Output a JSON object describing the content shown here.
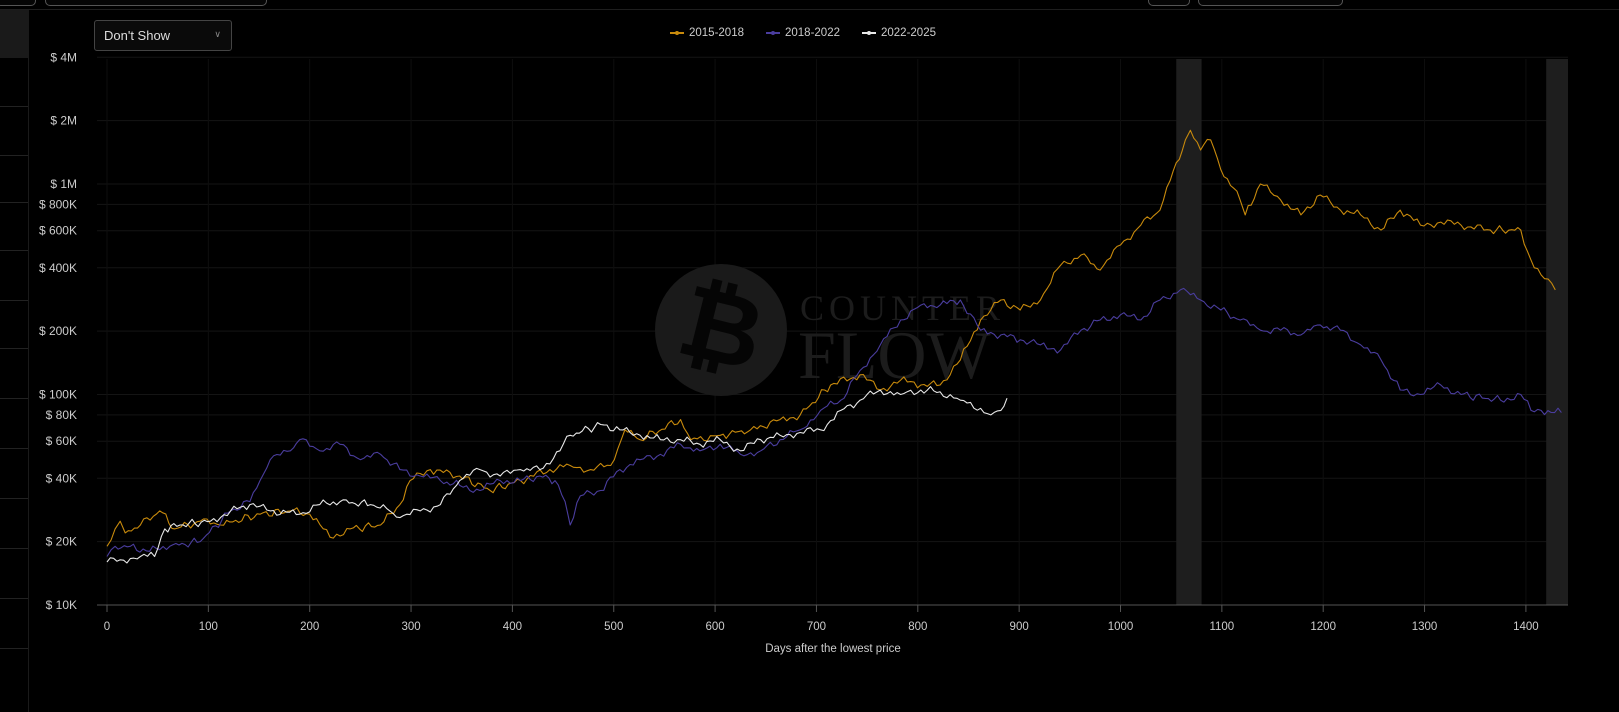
{
  "dropdown": {
    "selected": "Don't Show"
  },
  "colors": {
    "background": "#000000",
    "series_2015_2018": "#c88a0c",
    "series_2018_2022": "#4a3d9e",
    "series_2022_2025": "#e8e8e8",
    "shaded_band": "#1e1e1e"
  },
  "watermark": {
    "text_top": "COUNTER",
    "text_bottom": "FLOW",
    "icon": "bitcoin-icon"
  },
  "chart_data": {
    "type": "line",
    "title": "",
    "xlabel": "Days after the lowest price",
    "ylabel": "",
    "yscale": "log",
    "xlim": [
      -10,
      1442
    ],
    "ylim": [
      10000,
      4000000
    ],
    "grid": true,
    "legend_position": "top-center",
    "x_ticks": [
      "0",
      "100",
      "200",
      "300",
      "400",
      "500",
      "600",
      "700",
      "800",
      "900",
      "1000",
      "1100",
      "1200",
      "1300",
      "1400"
    ],
    "y_ticks": [
      {
        "value": 10000,
        "label": "$ 10K"
      },
      {
        "value": 20000,
        "label": "$ 20K"
      },
      {
        "value": 40000,
        "label": "$ 40K"
      },
      {
        "value": 60000,
        "label": "$ 60K"
      },
      {
        "value": 80000,
        "label": "$ 80K"
      },
      {
        "value": 100000,
        "label": "$ 100K"
      },
      {
        "value": 200000,
        "label": "$ 200K"
      },
      {
        "value": 400000,
        "label": "$ 400K"
      },
      {
        "value": 600000,
        "label": "$ 600K"
      },
      {
        "value": 800000,
        "label": "$ 800K"
      },
      {
        "value": 1000000,
        "label": "$ 1M"
      },
      {
        "value": 2000000,
        "label": "$ 2M"
      },
      {
        "value": 4000000,
        "label": "$ 4M"
      }
    ],
    "shaded_ranges": [
      [
        1055,
        1080
      ],
      [
        1420,
        1442
      ]
    ],
    "series": [
      {
        "name": "2015-2018",
        "color": "#c88a0c",
        "points": [
          [
            0,
            19000
          ],
          [
            8,
            23000
          ],
          [
            13,
            25000
          ],
          [
            18,
            22000
          ],
          [
            33,
            24000
          ],
          [
            52,
            28000
          ],
          [
            67,
            23000
          ],
          [
            92,
            25000
          ],
          [
            112,
            24000
          ],
          [
            151,
            27000
          ],
          [
            181,
            28000
          ],
          [
            200,
            27000
          ],
          [
            220,
            21000
          ],
          [
            240,
            23000
          ],
          [
            270,
            24000
          ],
          [
            289,
            30000
          ],
          [
            299,
            39000
          ],
          [
            319,
            44000
          ],
          [
            348,
            41000
          ],
          [
            378,
            35000
          ],
          [
            408,
            39000
          ],
          [
            437,
            44000
          ],
          [
            457,
            46000
          ],
          [
            477,
            44000
          ],
          [
            497,
            46000
          ],
          [
            511,
            68000
          ],
          [
            526,
            61000
          ],
          [
            566,
            76000
          ],
          [
            576,
            61000
          ],
          [
            605,
            64000
          ],
          [
            635,
            68000
          ],
          [
            664,
            76000
          ],
          [
            684,
            80000
          ],
          [
            714,
            111000
          ],
          [
            743,
            124000
          ],
          [
            763,
            105000
          ],
          [
            783,
            117000
          ],
          [
            803,
            111000
          ],
          [
            822,
            111000
          ],
          [
            842,
            146000
          ],
          [
            862,
            226000
          ],
          [
            882,
            281000
          ],
          [
            901,
            252000
          ],
          [
            921,
            281000
          ],
          [
            941,
            412000
          ],
          [
            961,
            460000
          ],
          [
            980,
            390000
          ],
          [
            1000,
            513000
          ],
          [
            1020,
            638000
          ],
          [
            1039,
            752000
          ],
          [
            1049,
            1040000
          ],
          [
            1064,
            1620000
          ],
          [
            1069,
            1800000
          ],
          [
            1079,
            1450000
          ],
          [
            1089,
            1620000
          ],
          [
            1099,
            1170000
          ],
          [
            1118,
            840000
          ],
          [
            1123,
            713000
          ],
          [
            1138,
            1000000
          ],
          [
            1158,
            840000
          ],
          [
            1178,
            713000
          ],
          [
            1197,
            887000
          ],
          [
            1217,
            752000
          ],
          [
            1237,
            713000
          ],
          [
            1257,
            604000
          ],
          [
            1276,
            752000
          ],
          [
            1296,
            638000
          ],
          [
            1316,
            659000
          ],
          [
            1336,
            638000
          ],
          [
            1365,
            604000
          ],
          [
            1395,
            604000
          ],
          [
            1405,
            435000
          ],
          [
            1415,
            370000
          ],
          [
            1429,
            314000
          ]
        ]
      },
      {
        "name": "2018-2022",
        "color": "#4a3d9e",
        "points": [
          [
            0,
            17000
          ],
          [
            8,
            19000
          ],
          [
            23,
            19000
          ],
          [
            42,
            18000
          ],
          [
            62,
            19000
          ],
          [
            92,
            20000
          ],
          [
            122,
            28000
          ],
          [
            141,
            31000
          ],
          [
            151,
            39000
          ],
          [
            161,
            49000
          ],
          [
            181,
            54000
          ],
          [
            190,
            61000
          ],
          [
            210,
            54000
          ],
          [
            230,
            58000
          ],
          [
            250,
            49000
          ],
          [
            270,
            52000
          ],
          [
            289,
            44000
          ],
          [
            309,
            41000
          ],
          [
            329,
            39000
          ],
          [
            348,
            37000
          ],
          [
            368,
            35000
          ],
          [
            388,
            39000
          ],
          [
            408,
            39000
          ],
          [
            427,
            41000
          ],
          [
            442,
            39000
          ],
          [
            452,
            31000
          ],
          [
            457,
            24000
          ],
          [
            467,
            33000
          ],
          [
            487,
            35000
          ],
          [
            506,
            44000
          ],
          [
            526,
            49000
          ],
          [
            546,
            52000
          ],
          [
            566,
            58000
          ],
          [
            585,
            54000
          ],
          [
            605,
            58000
          ],
          [
            625,
            52000
          ],
          [
            645,
            54000
          ],
          [
            664,
            61000
          ],
          [
            684,
            68000
          ],
          [
            704,
            84000
          ],
          [
            724,
            94000
          ],
          [
            743,
            130000
          ],
          [
            763,
            172000
          ],
          [
            783,
            226000
          ],
          [
            803,
            266000
          ],
          [
            822,
            266000
          ],
          [
            842,
            281000
          ],
          [
            862,
            202000
          ],
          [
            882,
            192000
          ],
          [
            901,
            182000
          ],
          [
            921,
            172000
          ],
          [
            941,
            163000
          ],
          [
            961,
            202000
          ],
          [
            980,
            226000
          ],
          [
            1000,
            239000
          ],
          [
            1020,
            226000
          ],
          [
            1039,
            281000
          ],
          [
            1059,
            314000
          ],
          [
            1079,
            281000
          ],
          [
            1099,
            252000
          ],
          [
            1118,
            226000
          ],
          [
            1138,
            202000
          ],
          [
            1158,
            202000
          ],
          [
            1178,
            192000
          ],
          [
            1197,
            214000
          ],
          [
            1217,
            202000
          ],
          [
            1237,
            172000
          ],
          [
            1257,
            146000
          ],
          [
            1276,
            105000
          ],
          [
            1296,
            100000
          ],
          [
            1316,
            111000
          ],
          [
            1336,
            100000
          ],
          [
            1375,
            94000
          ],
          [
            1395,
            100000
          ],
          [
            1405,
            84000
          ],
          [
            1415,
            84000
          ],
          [
            1435,
            82000
          ]
        ]
      },
      {
        "name": "2022-2025",
        "color": "#e8e8e8",
        "points": [
          [
            0,
            16000
          ],
          [
            13,
            16400
          ],
          [
            33,
            17000
          ],
          [
            47,
            17000
          ],
          [
            57,
            23000
          ],
          [
            72,
            24000
          ],
          [
            102,
            25000
          ],
          [
            122,
            28000
          ],
          [
            141,
            30000
          ],
          [
            161,
            28000
          ],
          [
            190,
            27000
          ],
          [
            210,
            30000
          ],
          [
            230,
            31000
          ],
          [
            260,
            30000
          ],
          [
            279,
            28000
          ],
          [
            289,
            26000
          ],
          [
            309,
            28000
          ],
          [
            329,
            30000
          ],
          [
            348,
            39000
          ],
          [
            368,
            44000
          ],
          [
            388,
            41000
          ],
          [
            408,
            44000
          ],
          [
            427,
            44000
          ],
          [
            447,
            54000
          ],
          [
            457,
            64000
          ],
          [
            487,
            72000
          ],
          [
            506,
            68000
          ],
          [
            526,
            64000
          ],
          [
            546,
            61000
          ],
          [
            566,
            61000
          ],
          [
            585,
            58000
          ],
          [
            605,
            61000
          ],
          [
            625,
            54000
          ],
          [
            645,
            61000
          ],
          [
            664,
            64000
          ],
          [
            684,
            66000
          ],
          [
            704,
            68000
          ],
          [
            724,
            84000
          ],
          [
            743,
            94000
          ],
          [
            763,
            105000
          ],
          [
            783,
            100000
          ],
          [
            803,
            105000
          ],
          [
            822,
            103000
          ],
          [
            842,
            94000
          ],
          [
            862,
            86000
          ],
          [
            872,
            80000
          ],
          [
            882,
            84000
          ],
          [
            888,
            96000
          ]
        ]
      }
    ]
  }
}
